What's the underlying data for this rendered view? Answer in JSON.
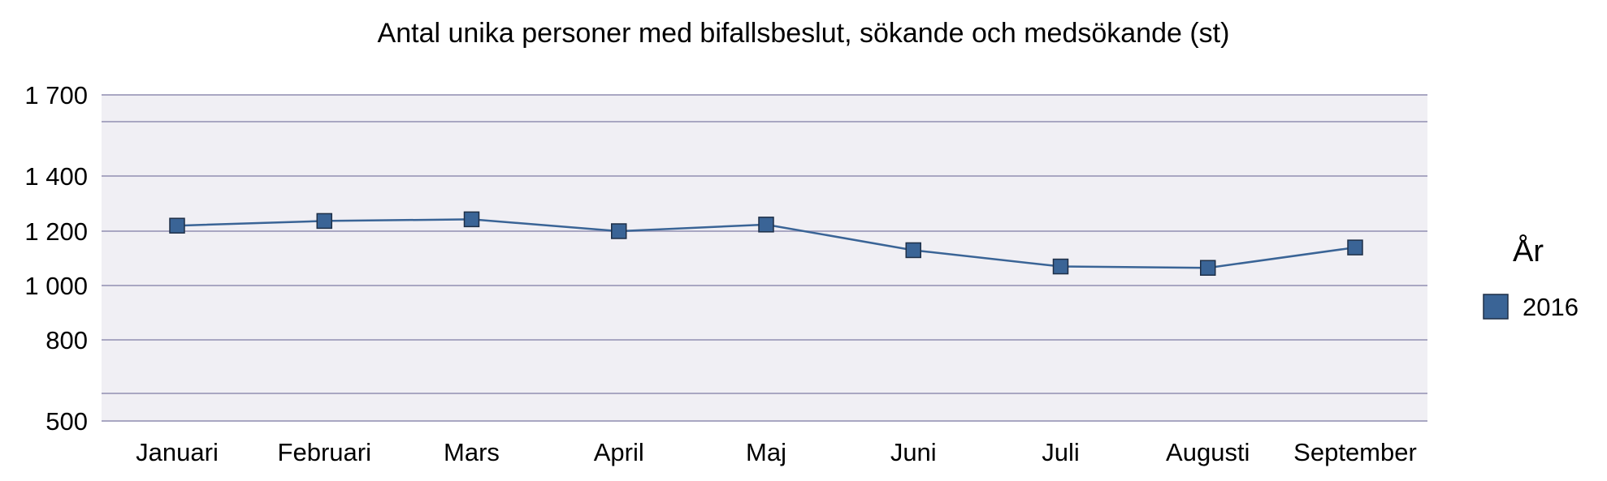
{
  "chart_data": {
    "type": "line",
    "title": "Antal unika personer med bifallsbeslut, sökande och medsökande (st)",
    "xlabel": "",
    "ylabel": "",
    "categories": [
      "Januari",
      "Februari",
      "Mars",
      "April",
      "Maj",
      "Juni",
      "Juli",
      "Augusti",
      "September"
    ],
    "series": [
      {
        "name": "2016",
        "color": "#3a6496",
        "marker": "square",
        "values": [
          1220,
          1237,
          1243,
          1200,
          1224,
          1130,
          1070,
          1065,
          1140
        ]
      }
    ],
    "y_ticks": [
      {
        "value": 500,
        "label": "500"
      },
      {
        "value": 800,
        "label": "800"
      },
      {
        "value": 1000,
        "label": "1 000"
      },
      {
        "value": 1200,
        "label": "1 200"
      },
      {
        "value": 1400,
        "label": "1 400"
      },
      {
        "value": 1700,
        "label": "1 700"
      }
    ],
    "ylim": [
      500,
      1700
    ],
    "grid": true,
    "plot_background": "#f0eff4",
    "grid_color": "#a9a7c2",
    "legend": {
      "title": "År",
      "placement": "right"
    }
  }
}
